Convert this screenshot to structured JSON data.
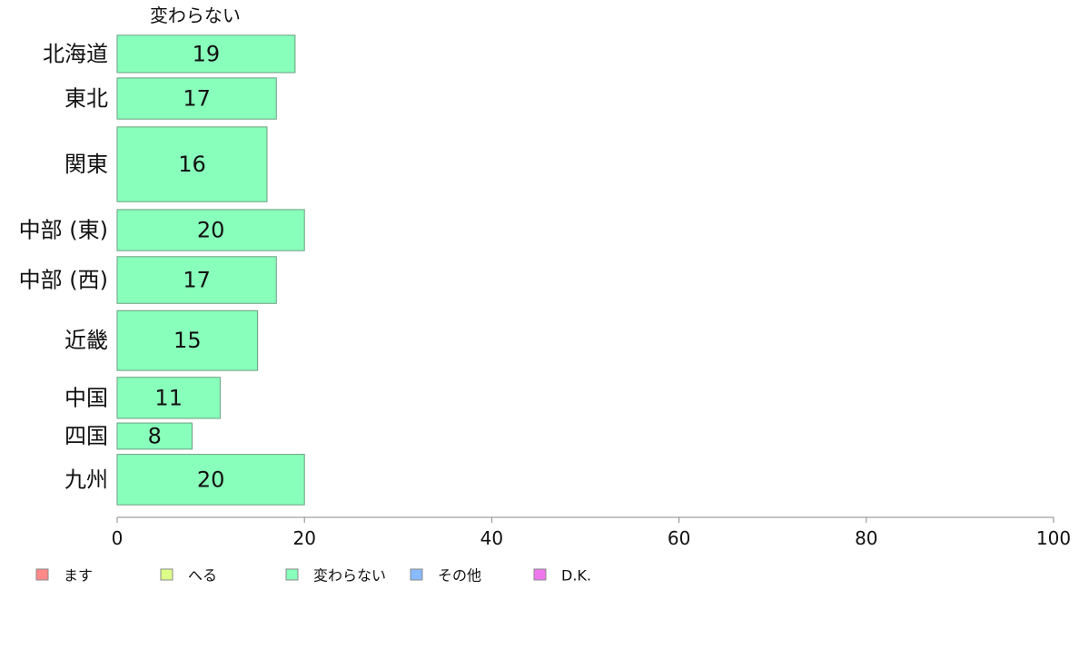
{
  "chart_data": {
    "type": "bar",
    "orientation": "horizontal",
    "stacked": true,
    "series_header": "変わらない",
    "categories": [
      "北海道",
      "東北",
      "関東",
      "中部 (東)",
      "中部 (西)",
      "近畿",
      "中国",
      "四国",
      "九州"
    ],
    "category_weights": [
      1.0,
      1.1,
      2.0,
      1.1,
      1.25,
      1.6,
      1.1,
      0.7,
      1.35
    ],
    "series": [
      {
        "name": "変わらない",
        "values": [
          19,
          17,
          16,
          20,
          17,
          15,
          11,
          8,
          20
        ],
        "color": "#88ffbb"
      }
    ],
    "data_labels": [
      "19",
      "17",
      "16",
      "20",
      "17",
      "15",
      "11",
      "8",
      "20"
    ],
    "xlim": [
      0,
      100
    ],
    "x_ticks": [
      0,
      20,
      40,
      60,
      80,
      100
    ],
    "x_tick_labels": [
      "0",
      "20",
      "40",
      "60",
      "80",
      "100"
    ],
    "grid": false,
    "legend_position": "bottom-left",
    "legend": [
      {
        "label": "ます",
        "color": "#ff8888"
      },
      {
        "label": "へる",
        "color": "#ddff88"
      },
      {
        "label": "変わらない",
        "color": "#88ffbb"
      },
      {
        "label": "その他",
        "color": "#88bbff"
      },
      {
        "label": "D.K.",
        "color": "#ee77ee"
      }
    ]
  }
}
